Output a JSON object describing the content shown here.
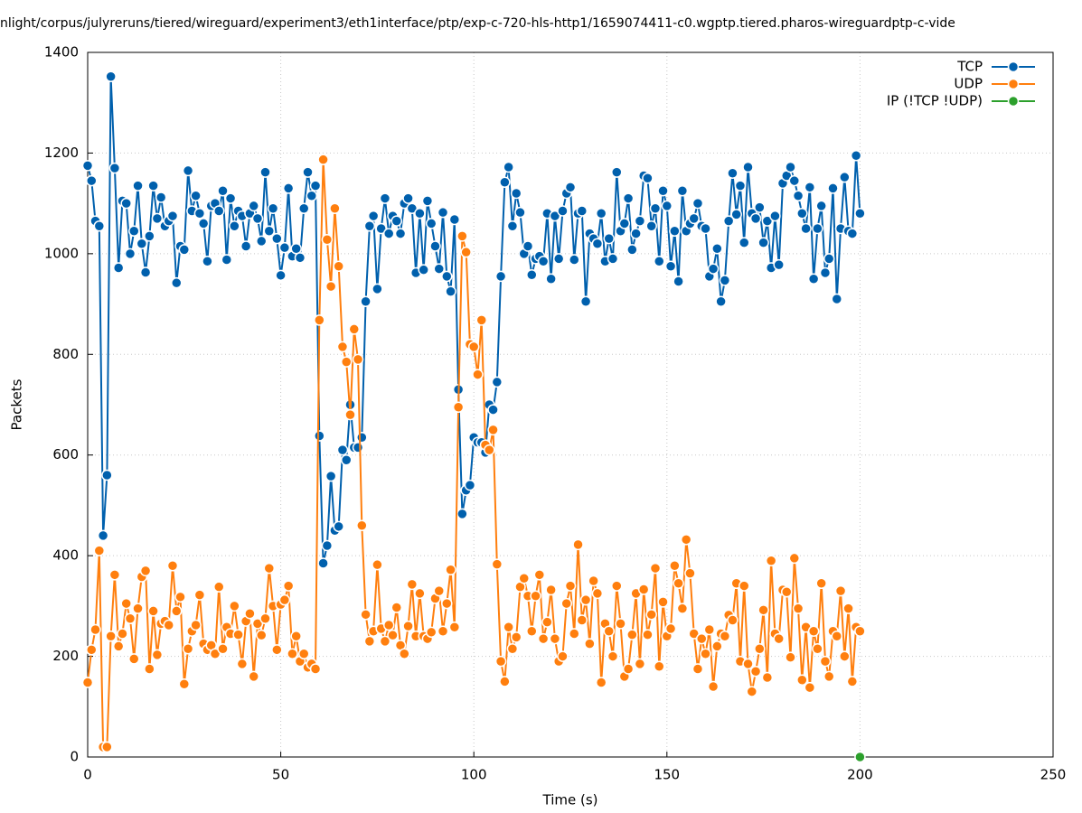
{
  "chart_data": {
    "type": "line",
    "title": "nlight/corpus/julyreruns/tiered/wireguard/experiment3/eth1interface/ptp/exp-c-720-hls-http1/1659074411-c0.wgptp.tiered.pharos-wireguardptp-c-vide",
    "xlabel": "Time (s)",
    "ylabel": "Packets",
    "xlim": [
      0,
      250
    ],
    "ylim": [
      0,
      1400
    ],
    "xticks": [
      0,
      50,
      100,
      150,
      200,
      250
    ],
    "yticks": [
      0,
      200,
      400,
      600,
      800,
      1000,
      1200,
      1400
    ],
    "grid": true,
    "legend": "top-right",
    "x": [
      0,
      1,
      2,
      3,
      4,
      5,
      6,
      7,
      8,
      9,
      10,
      11,
      12,
      13,
      14,
      15,
      16,
      17,
      18,
      19,
      20,
      21,
      22,
      23,
      24,
      25,
      26,
      27,
      28,
      29,
      30,
      31,
      32,
      33,
      34,
      35,
      36,
      37,
      38,
      39,
      40,
      41,
      42,
      43,
      44,
      45,
      46,
      47,
      48,
      49,
      50,
      51,
      52,
      53,
      54,
      55,
      56,
      57,
      58,
      59,
      60,
      61,
      62,
      63,
      64,
      65,
      66,
      67,
      68,
      69,
      70,
      71,
      72,
      73,
      74,
      75,
      76,
      77,
      78,
      79,
      80,
      81,
      82,
      83,
      84,
      85,
      86,
      87,
      88,
      89,
      90,
      91,
      92,
      93,
      94,
      95,
      96,
      97,
      98,
      99,
      100,
      101,
      102,
      103,
      104,
      105,
      106,
      107,
      108,
      109,
      110,
      111,
      112,
      113,
      114,
      115,
      116,
      117,
      118,
      119,
      120,
      121,
      122,
      123,
      124,
      125,
      126,
      127,
      128,
      129,
      130,
      131,
      132,
      133,
      134,
      135,
      136,
      137,
      138,
      139,
      140,
      141,
      142,
      143,
      144,
      145,
      146,
      147,
      148,
      149,
      150,
      151,
      152,
      153,
      154,
      155,
      156,
      157,
      158,
      159,
      160,
      161,
      162,
      163,
      164,
      165,
      166,
      167,
      168,
      169,
      170,
      171,
      172,
      173,
      174,
      175,
      176,
      177,
      178,
      179,
      180,
      181,
      182,
      183,
      184,
      185,
      186,
      187,
      188,
      189,
      190,
      191,
      192,
      193,
      194,
      195,
      196,
      197,
      198,
      199,
      200
    ],
    "series": [
      {
        "name": "TCP",
        "color": "#0060ad",
        "values": [
          1175,
          1145,
          1065,
          1055,
          440,
          560,
          1352,
          1170,
          972,
          1105,
          1100,
          1000,
          1045,
          1135,
          1020,
          963,
          1035,
          1135,
          1070,
          1112,
          1055,
          1065,
          1075,
          942,
          1015,
          1008,
          1165,
          1085,
          1115,
          1080,
          1060,
          985,
          1095,
          1100,
          1085,
          1125,
          988,
          1110,
          1055,
          1085,
          1075,
          1015,
          1080,
          1095,
          1070,
          1025,
          1162,
          1045,
          1090,
          1030,
          957,
          1012,
          1130,
          995,
          1010,
          992,
          1090,
          1162,
          1115,
          1135,
          638,
          385,
          420,
          558,
          450,
          458,
          610,
          590,
          700,
          615,
          615,
          635,
          905,
          1055,
          1075,
          930,
          1050,
          1110,
          1040,
          1075,
          1065,
          1040,
          1100,
          1110,
          1090,
          962,
          1080,
          968,
          1105,
          1060,
          1015,
          970,
          1082,
          955,
          925,
          1068,
          730,
          483,
          530,
          540,
          635,
          625,
          625,
          605,
          700,
          690,
          745,
          955,
          1142,
          1172,
          1055,
          1120,
          1082,
          1000,
          1015,
          958,
          990,
          995,
          985,
          1080,
          950,
          1075,
          990,
          1085,
          1120,
          1132,
          988,
          1080,
          1085,
          905,
          1040,
          1030,
          1020,
          1080,
          985,
          1030,
          990,
          1162,
          1045,
          1060,
          1110,
          1008,
          1040,
          1065,
          1155,
          1150,
          1055,
          1090,
          985,
          1125,
          1095,
          975,
          1045,
          945,
          1125,
          1045,
          1060,
          1070,
          1100,
          1055,
          1050,
          955,
          970,
          1010,
          905,
          947,
          1065,
          1160,
          1078,
          1135,
          1022,
          1172,
          1080,
          1070,
          1092,
          1022,
          1065,
          972,
          1075,
          978,
          1140,
          1155,
          1172,
          1145,
          1115,
          1080,
          1050,
          1132,
          950,
          1050,
          1095,
          962,
          990,
          1130,
          910,
          1050,
          1152,
          1045,
          1040,
          1195,
          1080
        ]
      },
      {
        "name": "UDP",
        "color": "#ff7f0e",
        "values": [
          148,
          213,
          253,
          410,
          20,
          20,
          240,
          362,
          220,
          245,
          305,
          275,
          195,
          295,
          358,
          370,
          175,
          290,
          203,
          265,
          270,
          262,
          380,
          290,
          318,
          145,
          215,
          250,
          262,
          322,
          225,
          213,
          222,
          205,
          338,
          215,
          258,
          245,
          300,
          243,
          185,
          270,
          285,
          160,
          265,
          242,
          275,
          375,
          300,
          213,
          303,
          312,
          340,
          205,
          240,
          190,
          205,
          178,
          185,
          175,
          868,
          1187,
          1028,
          935,
          1090,
          975,
          815,
          785,
          680,
          850,
          790,
          460,
          283,
          230,
          250,
          382,
          255,
          230,
          262,
          242,
          297,
          222,
          205,
          260,
          343,
          240,
          325,
          240,
          235,
          248,
          315,
          330,
          250,
          305,
          372,
          258,
          695,
          1035,
          1003,
          820,
          815,
          760,
          868,
          620,
          610,
          650,
          383,
          190,
          150,
          258,
          215,
          238,
          338,
          355,
          320,
          250,
          320,
          362,
          235,
          268,
          332,
          235,
          190,
          200,
          305,
          340,
          245,
          422,
          272,
          312,
          225,
          350,
          325,
          148,
          265,
          250,
          200,
          340,
          265,
          160,
          175,
          243,
          325,
          185,
          333,
          243,
          283,
          375,
          180,
          308,
          240,
          255,
          380,
          345,
          295,
          432,
          365,
          245,
          175,
          235,
          205,
          253,
          140,
          220,
          245,
          240,
          282,
          272,
          345,
          190,
          340,
          185,
          130,
          170,
          215,
          292,
          158,
          390,
          245,
          235,
          332,
          328,
          198,
          395,
          295,
          153,
          258,
          138,
          250,
          215,
          345,
          190,
          160,
          250,
          240,
          330,
          200,
          295,
          150,
          258,
          250
        ]
      },
      {
        "name": "IP (!TCP  !UDP)",
        "color": "#2ca02c",
        "x": [
          200
        ],
        "values": [
          0
        ]
      }
    ]
  }
}
